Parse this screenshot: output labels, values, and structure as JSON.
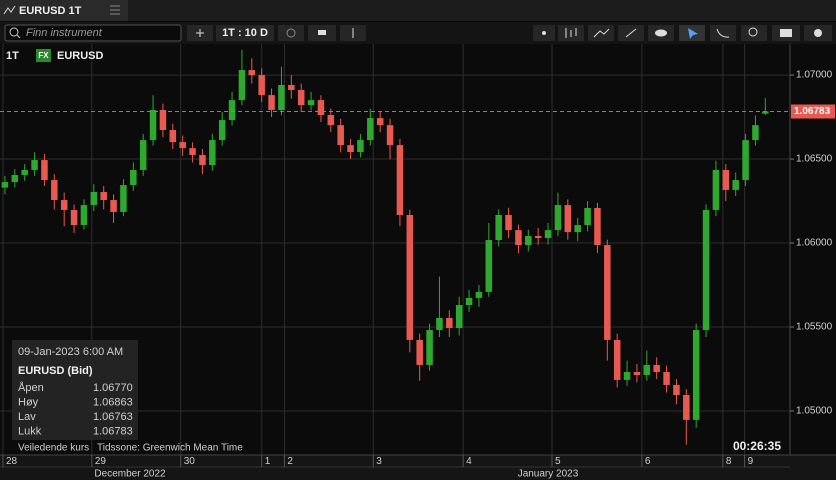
{
  "tab": {
    "title": "EURUSD 1T"
  },
  "toolbar": {
    "search_placeholder": "Finn instrument",
    "interval": "1T : 10 D"
  },
  "chart_header": {
    "interval": "1T",
    "badge": "FX",
    "symbol": "EURUSD"
  },
  "info_panel": {
    "datetime": "09-Jan-2023 6:00 AM",
    "instrument": "EURUSD (Bid)",
    "rows": [
      [
        "Åpen",
        "1.06770"
      ],
      [
        "Høy",
        "1.06863"
      ],
      [
        "Lav",
        "1.06763"
      ],
      [
        "Lukk",
        "1.06783"
      ]
    ]
  },
  "footer": {
    "note": "Veiledende kurs",
    "timezone": "Tidssone: Greenwich Mean Time",
    "clock": "00:26:35"
  },
  "chart_data": {
    "type": "candlestick",
    "up_color": "#2fa82f",
    "down_color": "#e8594f",
    "grid": true,
    "open": [
      1.0633,
      1.06363,
      1.06405,
      1.06435,
      1.06494,
      1.06375,
      1.06256,
      1.06197,
      1.06107,
      1.06226,
      1.06304,
      1.06256,
      1.06185,
      1.06345,
      1.06435,
      1.06613,
      1.06792,
      1.06673,
      1.06601,
      1.06565,
      1.06524,
      1.06464,
      1.06613,
      1.06732,
      1.06851,
      1.0703,
      1.07,
      1.06881,
      1.06792,
      1.06941,
      1.06911,
      1.06821,
      1.06851,
      1.06762,
      1.06702,
      1.06583,
      1.06542,
      1.06613,
      1.06744,
      1.06702,
      1.06583,
      1.06167,
      1.05423,
      1.05274,
      1.05482,
      1.05554,
      1.05494,
      1.05631,
      1.05673,
      1.05709,
      1.06018,
      1.06167,
      1.06077,
      1.05988,
      1.06042,
      1.0603,
      1.06077,
      1.06226,
      1.06065,
      1.06107,
      1.06209,
      1.05988,
      1.05423,
      1.05185,
      1.05232,
      1.05214,
      1.05274,
      1.05232,
      1.05155,
      1.05095,
      1.04947,
      1.05482,
      1.06197,
      1.06435,
      1.06316,
      1.06375,
      1.06613,
      1.0677
    ],
    "high": [
      1.064,
      1.0644,
      1.0647,
      1.0654,
      1.0653,
      1.0641,
      1.063,
      1.0623,
      1.0626,
      1.0635,
      1.0634,
      1.0629,
      1.0638,
      1.0648,
      1.0665,
      1.0688,
      1.0683,
      1.0671,
      1.0664,
      1.066,
      1.0656,
      1.0665,
      1.0678,
      1.069,
      1.0715,
      1.071,
      1.0704,
      1.0692,
      1.0705,
      1.07,
      1.0695,
      1.069,
      1.0688,
      1.068,
      1.0674,
      1.0662,
      1.0665,
      1.068,
      1.0678,
      1.0674,
      1.0662,
      1.062,
      1.0546,
      1.0552,
      1.058,
      1.056,
      1.0568,
      1.0572,
      1.0575,
      1.0612,
      1.062,
      1.0621,
      1.0611,
      1.0608,
      1.0609,
      1.0612,
      1.063,
      1.0626,
      1.0615,
      1.0625,
      1.0624,
      1.0602,
      1.0546,
      1.053,
      1.0528,
      1.0536,
      1.0532,
      1.0527,
      1.0519,
      1.0513,
      1.0552,
      1.0623,
      1.0649,
      1.0647,
      1.0642,
      1.0665,
      1.0676,
      1.06863
    ],
    "low": [
      1.0629,
      1.0633,
      1.0637,
      1.064,
      1.0634,
      1.062,
      1.061,
      1.0606,
      1.0608,
      1.0619,
      1.062,
      1.0612,
      1.0616,
      1.0631,
      1.064,
      1.0658,
      1.0663,
      1.0656,
      1.0652,
      1.0648,
      1.0641,
      1.0643,
      1.0658,
      1.067,
      1.0682,
      1.0695,
      1.0684,
      1.0675,
      1.0676,
      1.0686,
      1.0678,
      1.0679,
      1.0672,
      1.0666,
      1.0654,
      1.065,
      1.0651,
      1.0658,
      1.0666,
      1.065,
      1.061,
      1.0535,
      1.0518,
      1.0524,
      1.0544,
      1.0544,
      1.0545,
      1.0559,
      1.0562,
      1.0568,
      1.0598,
      1.0603,
      1.0594,
      1.0595,
      1.0599,
      1.0599,
      1.0604,
      1.0602,
      1.0601,
      1.0607,
      1.0594,
      1.053,
      1.0514,
      1.0515,
      1.0517,
      1.0518,
      1.0519,
      1.0511,
      1.0504,
      1.048,
      1.049,
      1.0544,
      1.0616,
      1.0625,
      1.0628,
      1.0634,
      1.0658,
      1.06763
    ],
    "close": [
      1.06363,
      1.06405,
      1.06435,
      1.06494,
      1.06375,
      1.06256,
      1.06197,
      1.06107,
      1.06226,
      1.06304,
      1.06256,
      1.06185,
      1.06345,
      1.06435,
      1.06613,
      1.06792,
      1.06673,
      1.06601,
      1.06565,
      1.06524,
      1.06464,
      1.06613,
      1.06732,
      1.06851,
      1.0703,
      1.07,
      1.06881,
      1.06792,
      1.06941,
      1.06911,
      1.06821,
      1.06851,
      1.06762,
      1.06702,
      1.06583,
      1.06542,
      1.06613,
      1.06744,
      1.06702,
      1.06583,
      1.06167,
      1.05423,
      1.05274,
      1.05482,
      1.05554,
      1.05494,
      1.05631,
      1.05673,
      1.05709,
      1.06018,
      1.06167,
      1.06077,
      1.05988,
      1.06042,
      1.0603,
      1.06077,
      1.06226,
      1.06065,
      1.06107,
      1.06209,
      1.05988,
      1.05423,
      1.05185,
      1.05232,
      1.05214,
      1.05274,
      1.05232,
      1.05155,
      1.05095,
      1.04947,
      1.05482,
      1.06197,
      1.06435,
      1.06316,
      1.06375,
      1.06613,
      1.06702,
      1.06783
    ],
    "last_value_label": "1.06783",
    "ylim": [
      1.04738,
      1.07185
    ],
    "yticks": [
      {
        "value": 1.05,
        "label": "1.05000"
      },
      {
        "value": 1.055,
        "label": "1.05500"
      },
      {
        "value": 1.06,
        "label": "1.06000"
      },
      {
        "value": 1.065,
        "label": "1.06500"
      },
      {
        "value": 1.07,
        "label": "1.07000"
      }
    ],
    "xlim": [
      -0.5,
      79.5
    ],
    "xticks": [
      {
        "value": -0.2,
        "label": "28"
      },
      {
        "value": 8.8,
        "label": "29"
      },
      {
        "value": 17.8,
        "label": "30"
      },
      {
        "value": 26.0,
        "label": "1"
      },
      {
        "value": 28.3,
        "label": "2"
      },
      {
        "value": 37.3,
        "label": "3"
      },
      {
        "value": 46.4,
        "label": "4"
      },
      {
        "value": 55.4,
        "label": "5"
      },
      {
        "value": 64.5,
        "label": "6"
      },
      {
        "value": 72.7,
        "label": "8"
      },
      {
        "value": 74.9,
        "label": "9"
      }
    ],
    "x_month_labels": [
      "December 2022",
      "January 2023"
    ]
  }
}
